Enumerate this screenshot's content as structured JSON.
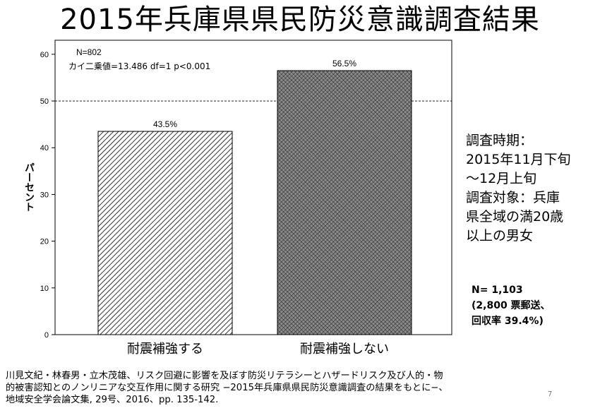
{
  "title": "2015年兵庫県県民防災意識調査結果",
  "chart_data": {
    "type": "bar",
    "categories": [
      "耐震補強する",
      "耐震補強しない"
    ],
    "values": [
      43.5,
      56.5
    ],
    "data_labels": [
      "43.5%",
      "56.5%"
    ],
    "ylabel": "パーセント",
    "ylim": [
      0,
      63
    ],
    "yticks": [
      0,
      10,
      20,
      30,
      40,
      50,
      60
    ],
    "reference_line": 50,
    "annotations": [
      "N=802",
      "カイ二乗値=13.486 df=1 p<0.001"
    ],
    "grid": false,
    "bar_fills": [
      "diagonal-hatch",
      "crosshatch"
    ],
    "colors": {
      "stroke": "#000000",
      "hatch_light": "#ffffff",
      "hatch_dark": "#7a7a7a"
    }
  },
  "side_info": "調査時期：\n2015年11月下旬\n〜12月上旬\n調査対象：兵庫\n県全域の満20歳\n以上の男女",
  "sample_info": "N= 1,103\n(2,800 票郵送、\n回収率 39.4%)",
  "citation": "川見文紀・林春男・立木茂雄、リスク回避に影響を及ぼす防災リテラシーとハザードリスク及び人的・物\n的被害認知とのノンリニアな交互作用に関する研究 −2015年兵庫県県民防災意識調査の結果をもとに−、\n地域安全学会論文集, 29号、2016、pp. 135-142.",
  "page_number": "7"
}
